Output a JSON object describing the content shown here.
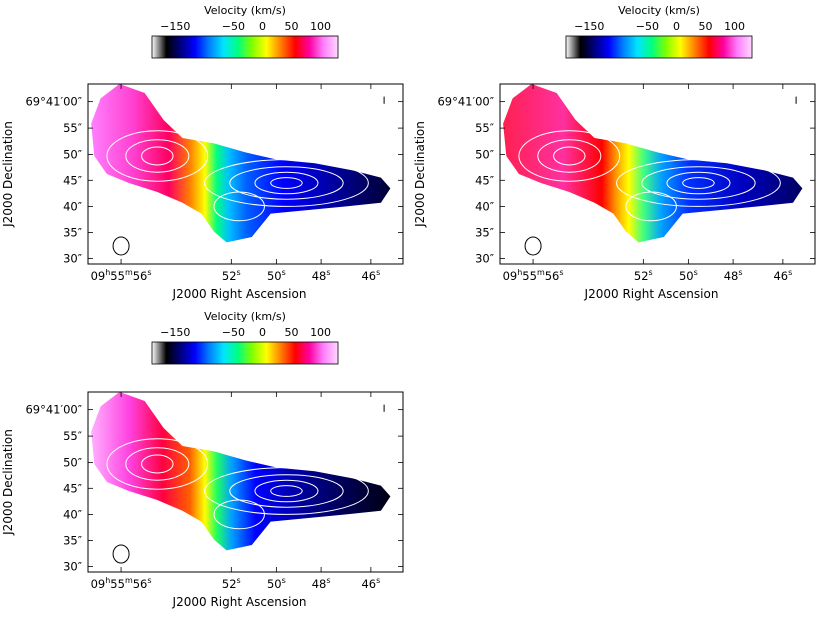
{
  "colorbar": {
    "title": "Velocity (km/s)",
    "ticks": [
      "−150",
      "−50",
      "0",
      "50",
      "100"
    ],
    "tick_values": [
      -150,
      -50,
      0,
      50,
      100
    ],
    "vmin": -190,
    "vmax": 130,
    "stops": [
      "#ffffff",
      "#000000",
      "#00007f",
      "#0000ff",
      "#0080ff",
      "#00e5ff",
      "#00ff80",
      "#80ff00",
      "#ffff00",
      "#ff8000",
      "#ff0000",
      "#ff00a0",
      "#ff80ff",
      "#ffd8ff"
    ]
  },
  "axes": {
    "x_label": "J2000 Right Ascension",
    "y_label": "J2000 Declination",
    "x_ticks": [
      {
        "h": "09",
        "m": "55",
        "s": "56",
        "first": true
      },
      {
        "s": "52"
      },
      {
        "s": "50"
      },
      {
        "s": "48"
      },
      {
        "s": "46"
      }
    ],
    "y_ticks": [
      {
        "text": "69°41′00″",
        "deg": "69",
        "min": "41",
        "sec": "00"
      },
      {
        "text": "55″"
      },
      {
        "text": "50″"
      },
      {
        "text": "45″"
      },
      {
        "text": "40″"
      },
      {
        "text": "35″"
      },
      {
        "text": "30″"
      }
    ]
  },
  "panels": [
    {
      "id": "panel-1"
    },
    {
      "id": "panel-2"
    },
    {
      "id": "panel-3"
    }
  ]
}
